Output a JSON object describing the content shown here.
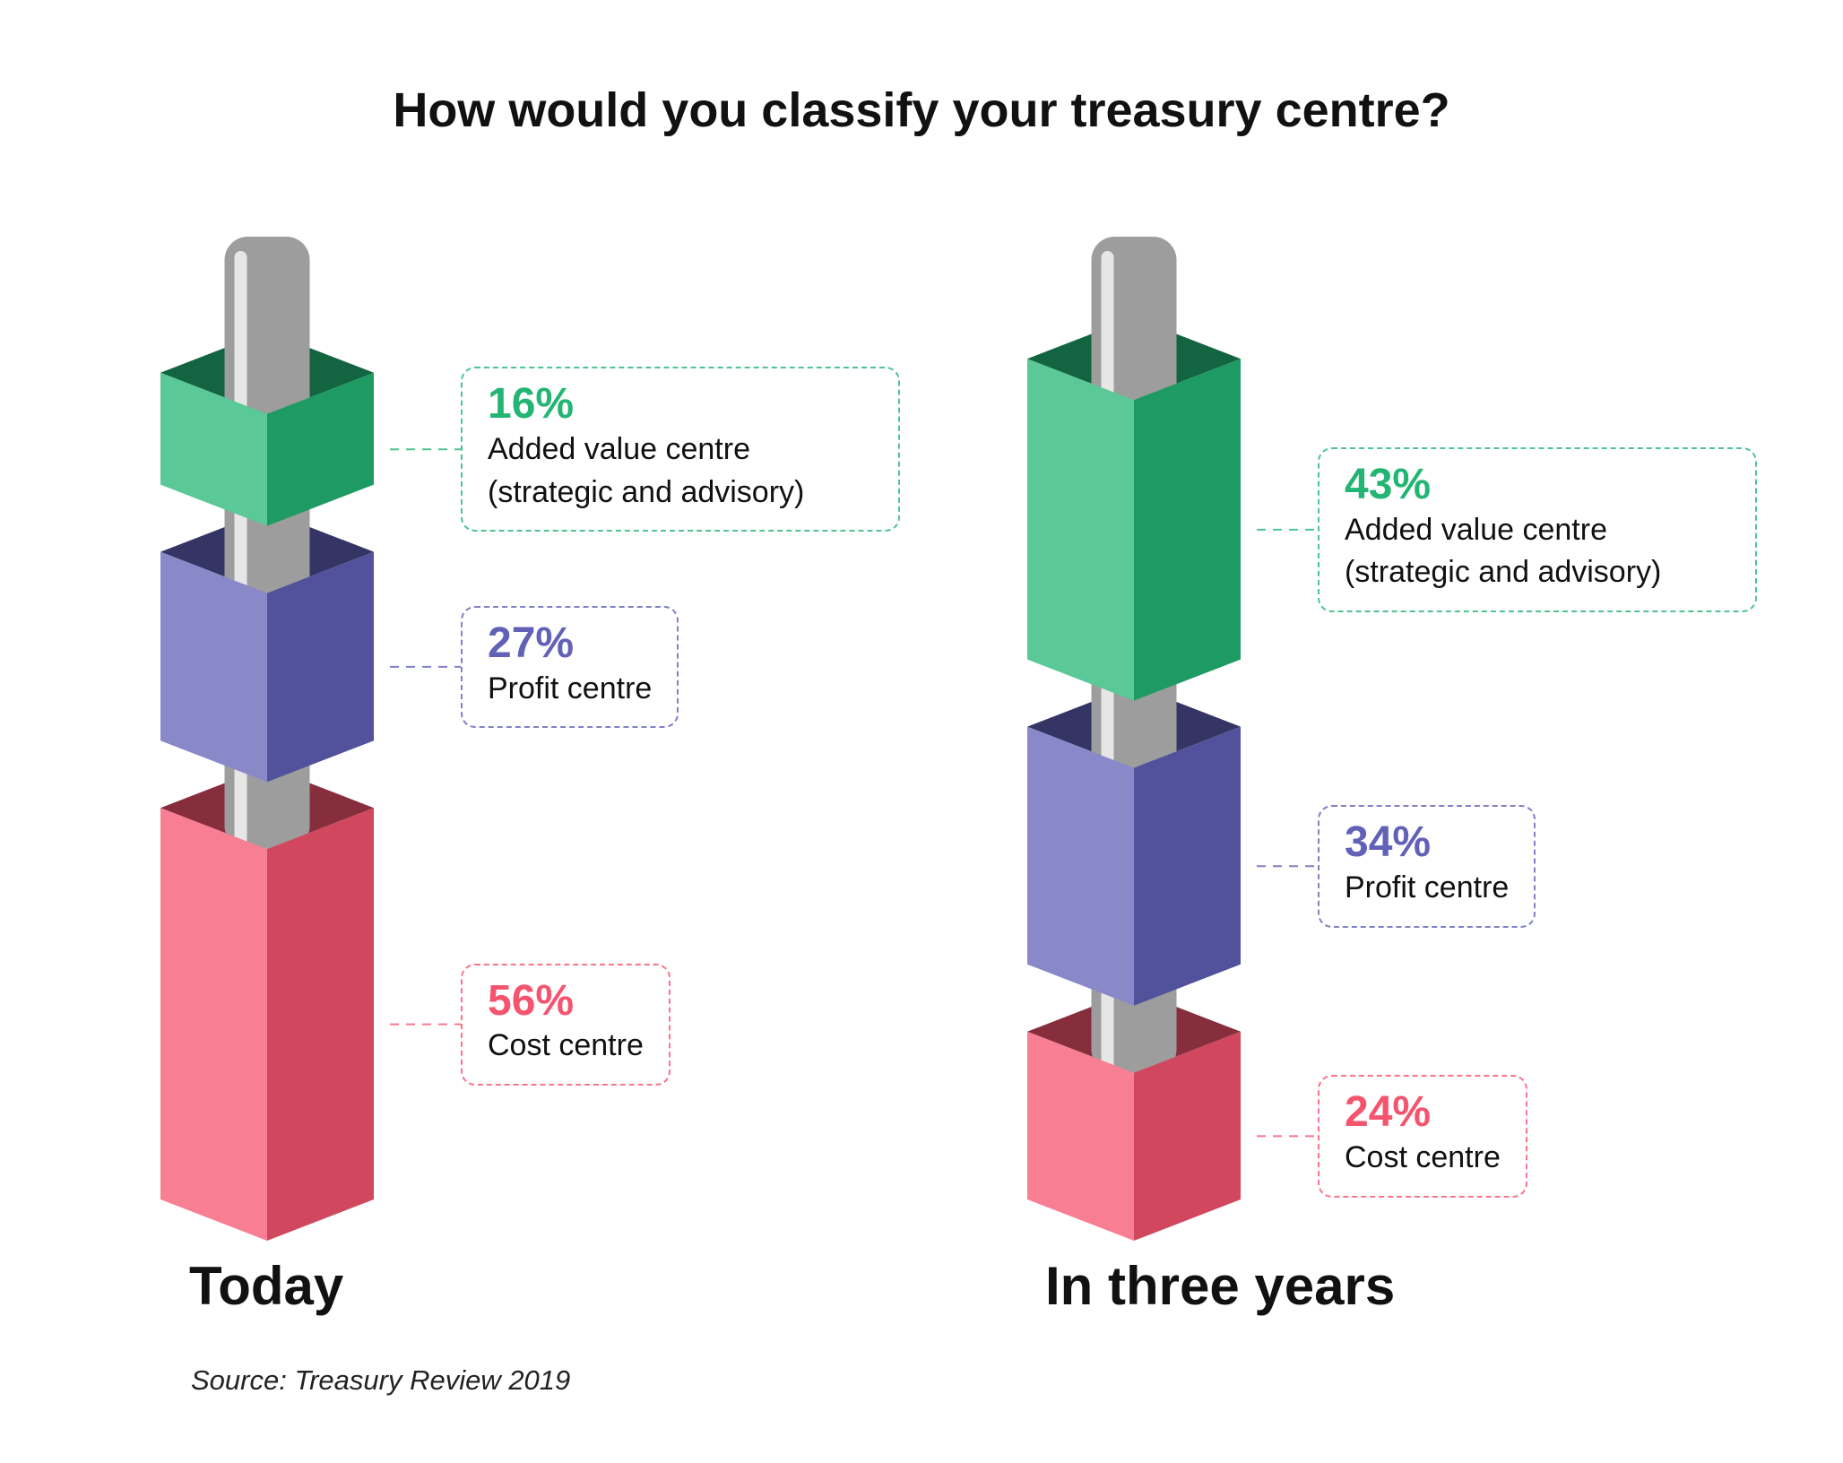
{
  "title": "How would you classify your treasury centre?",
  "source": "Source: Treasury Review 2019",
  "chart_data": [
    {
      "type": "bar",
      "title": "Today",
      "categories": [
        "Added value centre (strategic and advisory)",
        "Profit centre",
        "Cost centre"
      ],
      "values": [
        16,
        27,
        56
      ],
      "value_labels": [
        "16%",
        "27%",
        "56%"
      ],
      "colors": [
        "#23b574",
        "#6161b8",
        "#f5546f"
      ]
    },
    {
      "type": "bar",
      "title": "In three years",
      "categories": [
        "Added value centre (strategic and advisory)",
        "Profit centre",
        "Cost centre"
      ],
      "values": [
        43,
        34,
        24
      ],
      "value_labels": [
        "43%",
        "34%",
        "24%"
      ],
      "colors": [
        "#23b574",
        "#6161b8",
        "#f5546f"
      ]
    }
  ]
}
